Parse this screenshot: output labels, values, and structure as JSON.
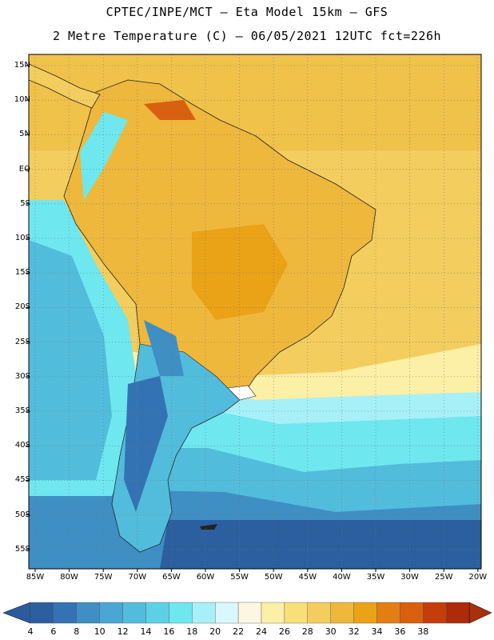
{
  "header": {
    "title_line1": "CPTEC/INPE/MCT –  Eta Model 15km – GFS",
    "title_line2": "2 Metre Temperature (C) – 06/05/2021 12UTC fct=226h"
  },
  "map": {
    "lat_labels": [
      "15N",
      "10N",
      "5N",
      "EQ",
      "5S",
      "10S",
      "15S",
      "20S",
      "25S",
      "30S",
      "35S",
      "40S",
      "45S",
      "50S",
      "55S"
    ],
    "lon_labels": [
      "85W",
      "80W",
      "75W",
      "70W",
      "65W",
      "60W",
      "55W",
      "50W",
      "45W",
      "40W",
      "35W",
      "30W",
      "25W",
      "20W"
    ],
    "grid": true,
    "grid_style": "dotted"
  },
  "colorbar": {
    "labels": [
      "4",
      "6",
      "8",
      "10",
      "12",
      "14",
      "16",
      "18",
      "20",
      "22",
      "24",
      "26",
      "28",
      "30",
      "32",
      "34",
      "36",
      "38"
    ],
    "colors": [
      "#2b5fa0",
      "#3473b3",
      "#3f8ec4",
      "#4aa6d2",
      "#52bcdc",
      "#5cd1e6",
      "#6ee7ef",
      "#a8f0f7",
      "#d8f8fb",
      "#fdf6e0",
      "#fcefa6",
      "#f8df78",
      "#f3ce5e",
      "#eeb83d",
      "#eaa216",
      "#e37e13",
      "#d9600e",
      "#c33e0a",
      "#ad2b08"
    ],
    "arrow_left_color": "#2d5a9e",
    "arrow_right_color": "#a8300c"
  }
}
